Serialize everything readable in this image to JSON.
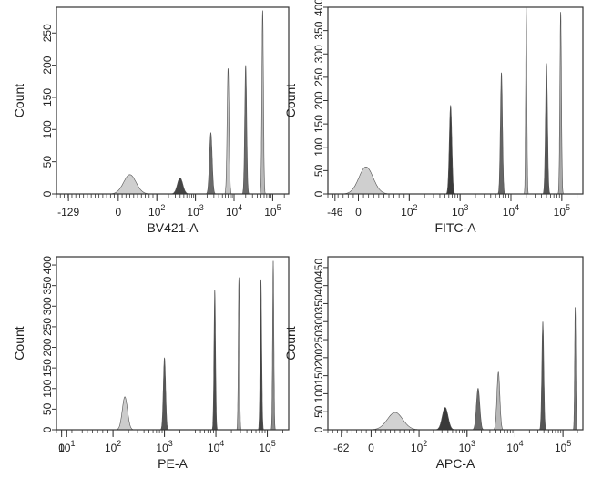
{
  "chart_data": [
    {
      "type": "histogram",
      "xlabel": "BV421-A",
      "ylabel": "Count",
      "y_ticks": [
        "0",
        "50",
        "100",
        "150",
        "200",
        "250"
      ],
      "ylim": [
        0,
        290
      ],
      "x_ticks": [
        {
          "label": "-129",
          "pos": -129,
          "sup": ""
        },
        {
          "label": "0",
          "pos": 0,
          "sup": ""
        },
        {
          "label": "10",
          "pos": 100,
          "sup": "2"
        },
        {
          "label": "10",
          "pos": 1000,
          "sup": "3"
        },
        {
          "label": "10",
          "pos": 10000,
          "sup": "4"
        },
        {
          "label": "10",
          "pos": 100000,
          "sup": "5"
        }
      ],
      "xlim": [
        -160,
        260000
      ],
      "peaks": [
        {
          "center": "30",
          "height": 30,
          "width": 0.16,
          "color": "#cfcfcf"
        },
        {
          "center": "400",
          "height": 25,
          "width": 0.07,
          "color": "#444444"
        },
        {
          "center": "2500",
          "height": 95,
          "width": 0.035,
          "color": "#6a6a6a"
        },
        {
          "center": "7000",
          "height": 195,
          "width": 0.025,
          "color": "#c4c4c4"
        },
        {
          "center": "20000",
          "height": 200,
          "width": 0.025,
          "color": "#6a6a6a"
        },
        {
          "center": "55000",
          "height": 285,
          "width": 0.02,
          "color": "#b8b8b8"
        }
      ]
    },
    {
      "type": "histogram",
      "xlabel": "FITC-A",
      "ylabel": "Count",
      "y_ticks": [
        "0",
        "50",
        "100",
        "150",
        "200",
        "250",
        "300",
        "350",
        "400"
      ],
      "ylim": [
        0,
        400
      ],
      "x_ticks": [
        {
          "label": "-46",
          "pos": -46,
          "sup": ""
        },
        {
          "label": "0",
          "pos": 0,
          "sup": ""
        },
        {
          "label": "10",
          "pos": 100,
          "sup": "2"
        },
        {
          "label": "10",
          "pos": 1000,
          "sup": "3"
        },
        {
          "label": "10",
          "pos": 10000,
          "sup": "4"
        },
        {
          "label": "10",
          "pos": 100000,
          "sup": "5"
        }
      ],
      "xlim": [
        -60,
        260000
      ],
      "peaks": [
        {
          "center": "15",
          "height": 58,
          "width": 0.14,
          "color": "#cfcfcf"
        },
        {
          "center": "650",
          "height": 190,
          "width": 0.025,
          "color": "#3a3a3a"
        },
        {
          "center": "6500",
          "height": 260,
          "width": 0.02,
          "color": "#666666"
        },
        {
          "center": "20000",
          "height": 400,
          "width": 0.012,
          "color": "#b0b0b0"
        },
        {
          "center": "50000",
          "height": 280,
          "width": 0.02,
          "color": "#555555"
        },
        {
          "center": "95000",
          "height": 390,
          "width": 0.015,
          "color": "#a8a8a8"
        }
      ]
    },
    {
      "type": "histogram",
      "xlabel": "PE-A",
      "ylabel": "Count",
      "y_ticks": [
        "0",
        "50",
        "100",
        "150",
        "200",
        "250",
        "300",
        "350",
        "400"
      ],
      "ylim": [
        0,
        420
      ],
      "x_ticks": [
        {
          "label": "0",
          "pos": 0,
          "sup": ""
        },
        {
          "label": "10",
          "pos": 10,
          "sup": "1"
        },
        {
          "label": "10",
          "pos": 100,
          "sup": "2"
        },
        {
          "label": "10",
          "pos": 1000,
          "sup": "3"
        },
        {
          "label": "10",
          "pos": 10000,
          "sup": "4"
        },
        {
          "label": "10",
          "pos": 100000,
          "sup": "5"
        }
      ],
      "xlim": [
        -10,
        260000
      ],
      "peaks": [
        {
          "center": "170",
          "height": 80,
          "width": 0.05,
          "color": "#cccccc"
        },
        {
          "center": "1000",
          "height": 175,
          "width": 0.022,
          "color": "#555555"
        },
        {
          "center": "9500",
          "height": 340,
          "width": 0.015,
          "color": "#4a4a4a"
        },
        {
          "center": "28000",
          "height": 370,
          "width": 0.012,
          "color": "#a0a0a0"
        },
        {
          "center": "75000",
          "height": 365,
          "width": 0.015,
          "color": "#444444"
        },
        {
          "center": "130000",
          "height": 410,
          "width": 0.012,
          "color": "#8a8a8a"
        }
      ]
    },
    {
      "type": "histogram",
      "xlabel": "APC-A",
      "ylabel": "Count",
      "y_ticks": [
        "0",
        "50",
        "100",
        "150",
        "200",
        "250",
        "300",
        "350",
        "400",
        "450"
      ],
      "ylim": [
        0,
        480
      ],
      "x_ticks": [
        {
          "label": "-62",
          "pos": -62,
          "sup": ""
        },
        {
          "label": "0",
          "pos": 0,
          "sup": ""
        },
        {
          "label": "10",
          "pos": 100,
          "sup": "2"
        },
        {
          "label": "10",
          "pos": 1000,
          "sup": "3"
        },
        {
          "label": "10",
          "pos": 10000,
          "sup": "4"
        },
        {
          "label": "10",
          "pos": 100000,
          "sup": "5"
        }
      ],
      "xlim": [
        -90,
        260000
      ],
      "peaks": [
        {
          "center": "50",
          "height": 48,
          "width": 0.16,
          "color": "#d2d2d2"
        },
        {
          "center": "350",
          "height": 62,
          "width": 0.06,
          "color": "#3a3a3a"
        },
        {
          "center": "1700",
          "height": 115,
          "width": 0.035,
          "color": "#6a6a6a"
        },
        {
          "center": "4500",
          "height": 160,
          "width": 0.03,
          "color": "#b8b8b8"
        },
        {
          "center": "38000",
          "height": 300,
          "width": 0.02,
          "color": "#555555"
        },
        {
          "center": "180000",
          "height": 340,
          "width": 0.012,
          "color": "#777777"
        }
      ]
    }
  ]
}
